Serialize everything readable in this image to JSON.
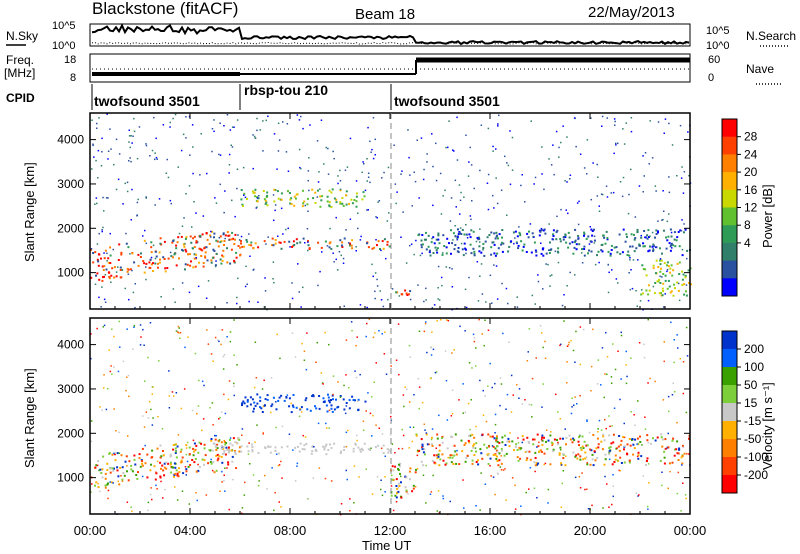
{
  "header": {
    "station": "Blackstone (fitACF)",
    "beam": "Beam 18",
    "date": "22/May/2013"
  },
  "noise_panel": {
    "left_label": "N.Sky",
    "right_label": "N.Search",
    "left_ticks": [
      "10^5",
      "10^0"
    ],
    "right_ticks": [
      "10^5",
      "10^0"
    ]
  },
  "freq_panel": {
    "left_label_1": "Freq.",
    "left_label_2": "[MHz]",
    "right_label": "Nave",
    "left_ticks": [
      "18",
      "8"
    ],
    "right_ticks": [
      "60",
      "0"
    ]
  },
  "cpid": {
    "label": "CPID",
    "segments": [
      {
        "name": "twofsound 3501",
        "start_h": 0,
        "end_h": 6
      },
      {
        "name": "rbsp-tou 210",
        "start_h": 6,
        "end_h": 12
      },
      {
        "name": "twofsound 3501",
        "start_h": 12,
        "end_h": 24
      }
    ]
  },
  "time_axis": {
    "label": "Time UT",
    "ticks": [
      "00:00",
      "04:00",
      "08:00",
      "12:00",
      "16:00",
      "20:00",
      "00:00"
    ]
  },
  "chart_data": [
    {
      "type": "heatmap",
      "panel": "power",
      "ylabel": "Slant Range [km]",
      "yticks": [
        1000,
        2000,
        3000,
        4000
      ],
      "ylim": [
        180,
        4600
      ],
      "xlim_hours": [
        0,
        24
      ],
      "colorbar_label": "Power [dB]",
      "colorbar_ticks": [
        "28",
        "24",
        "20",
        "16",
        "12",
        "8",
        "4"
      ],
      "colorbar_colors": [
        "#ff0000",
        "#ff4000",
        "#ff8000",
        "#ffb000",
        "#c8d800",
        "#60c030",
        "#2e9b56",
        "#2f7f6a",
        "#2a50a0",
        "#0000ff"
      ],
      "features": [
        {
          "band": "main",
          "from_h": 0,
          "to_h": 6,
          "range_km": [
            950,
            1750
          ],
          "level": "high"
        },
        {
          "band": "main",
          "from_h": 6,
          "to_h": 12,
          "range_km": [
            1550,
            1800
          ],
          "level": "high"
        },
        {
          "band": "upper",
          "from_h": 6,
          "to_h": 11,
          "range_km": [
            2500,
            2900
          ],
          "level": "medium"
        },
        {
          "band": "low",
          "from_h": 12,
          "to_h": 13,
          "range_km": [
            500,
            700
          ],
          "level": "high"
        },
        {
          "band": "scatter",
          "from_h": 13,
          "to_h": 24,
          "range_km": [
            1400,
            2000
          ],
          "level": "low"
        },
        {
          "band": "end",
          "from_h": 22,
          "to_h": 24,
          "range_km": [
            500,
            1300
          ],
          "level": "medium"
        }
      ]
    },
    {
      "type": "heatmap",
      "panel": "velocity",
      "ylabel": "Slant Range [km]",
      "yticks": [
        1000,
        2000,
        3000,
        4000
      ],
      "ylim": [
        180,
        4600
      ],
      "xlim_hours": [
        0,
        24
      ],
      "colorbar_label": "Velocity [m s⁻¹]",
      "colorbar_ticks": [
        "200",
        "100",
        "50",
        "15",
        "-15",
        "-50",
        "-100",
        "-200"
      ],
      "colorbar_colors": [
        "#0033cc",
        "#0060ff",
        "#3aa000",
        "#7ccf3a",
        "#c8c8c8",
        "#ffb000",
        "#ff8000",
        "#ff4000",
        "#ff0000"
      ],
      "features": [
        {
          "band": "main",
          "from_h": 0,
          "to_h": 6,
          "range_km": [
            900,
            1700
          ],
          "velocity": "mixed"
        },
        {
          "band": "ground",
          "from_h": 4.5,
          "to_h": 12,
          "range_km": [
            1550,
            1800
          ],
          "velocity": "near-zero"
        },
        {
          "band": "upper",
          "from_h": 6,
          "to_h": 11,
          "range_km": [
            2500,
            2900
          ],
          "velocity": "positive"
        },
        {
          "band": "low",
          "from_h": 12,
          "to_h": 13,
          "range_km": [
            500,
            1400
          ],
          "velocity": "mixed"
        },
        {
          "band": "scatter",
          "from_h": 13,
          "to_h": 24,
          "range_km": [
            1300,
            2000
          ],
          "velocity": "mixed"
        }
      ]
    }
  ]
}
